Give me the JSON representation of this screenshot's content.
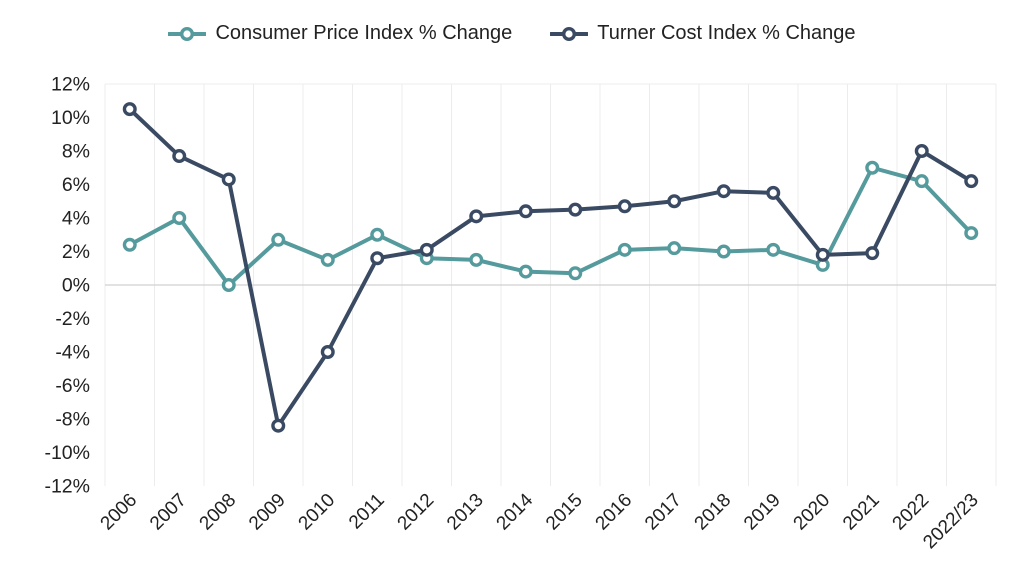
{
  "colors": {
    "background": "#ffffff",
    "grid": "#ececec",
    "zero_line": "#d0d0d0",
    "text": "#222222",
    "cpi_series": "#559a9c",
    "turner_series": "#3a4a63"
  },
  "chart_data": {
    "type": "line",
    "categories": [
      "2006",
      "2007",
      "2008",
      "2009",
      "2010",
      "2011",
      "2012",
      "2013",
      "2014",
      "2015",
      "2016",
      "2017",
      "2018",
      "2019",
      "2020",
      "2021",
      "2022",
      "2022/23"
    ],
    "series": [
      {
        "name": "Consumer Price Index % Change",
        "color": "#559a9c",
        "values": [
          2.4,
          4.0,
          0.0,
          2.7,
          1.5,
          3.0,
          1.6,
          1.5,
          0.8,
          0.7,
          2.1,
          2.2,
          2.0,
          2.1,
          1.2,
          7.0,
          6.2,
          3.1
        ]
      },
      {
        "name": "Turner Cost Index % Change",
        "color": "#3a4a63",
        "values": [
          10.5,
          7.7,
          6.3,
          -8.4,
          -4.0,
          1.6,
          2.1,
          4.1,
          4.4,
          4.5,
          4.7,
          5.0,
          5.6,
          5.5,
          1.8,
          1.9,
          8.0,
          6.2
        ]
      }
    ],
    "y_axis": {
      "min": -12,
      "max": 12,
      "step": 2,
      "tick_values": [
        12,
        10,
        8,
        6,
        4,
        2,
        0,
        -2,
        -4,
        -6,
        -8,
        -10,
        -12
      ],
      "tick_labels": [
        "12%",
        "10%",
        "8%",
        "6%",
        "4%",
        "2%",
        "0%",
        "-2%",
        "-4%",
        "-6%",
        "-8%",
        "-10%",
        "-12%"
      ]
    },
    "legend_position": "top",
    "grid": {
      "vertical": true,
      "horizontal": false,
      "zero_line": true,
      "top_border": true
    },
    "marker_style": "open-circle"
  }
}
